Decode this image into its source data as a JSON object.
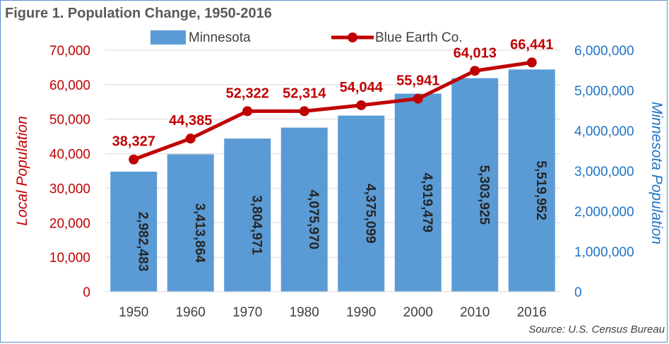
{
  "chart_data": {
    "type": "bar",
    "title": "Figure 1. Population Change, 1950-2016",
    "source": "Source: U.S. Census Bureau",
    "categories": [
      "1950",
      "1960",
      "1970",
      "1980",
      "1990",
      "2000",
      "2010",
      "2016"
    ],
    "series": [
      {
        "name": "Minnesota",
        "type": "bar",
        "axis": "right",
        "color": "#5b9bd5",
        "values": [
          2982483,
          3413864,
          3804971,
          4075970,
          4375099,
          4919479,
          5303925,
          5519952
        ],
        "labels": [
          "2,982,483",
          "3,413,864",
          "3,804,971",
          "4,075,970",
          "4,375,099",
          "4,919,479",
          "5,303,925",
          "5,519,952"
        ]
      },
      {
        "name": "Blue Earth Co.",
        "type": "line",
        "axis": "left",
        "color": "#c00000",
        "values": [
          38327,
          44385,
          52322,
          52314,
          54044,
          55941,
          64013,
          66441
        ],
        "labels": [
          "38,327",
          "44,385",
          "52,322",
          "52,314",
          "54,044",
          "55,941",
          "64,013",
          "66,441"
        ]
      }
    ],
    "y_left": {
      "label": "Local Population",
      "range": [
        0,
        70000
      ],
      "ticks": [
        "0",
        "10,000",
        "20,000",
        "30,000",
        "40,000",
        "50,000",
        "60,000",
        "70,000"
      ]
    },
    "y_right": {
      "label": "Minnesota Population",
      "range": [
        0,
        6000000
      ],
      "ticks": [
        "0",
        "1,000,000",
        "2,000,000",
        "3,000,000",
        "4,000,000",
        "5,000,000",
        "6,000,000"
      ]
    },
    "legend_position": "top",
    "grid": true
  }
}
